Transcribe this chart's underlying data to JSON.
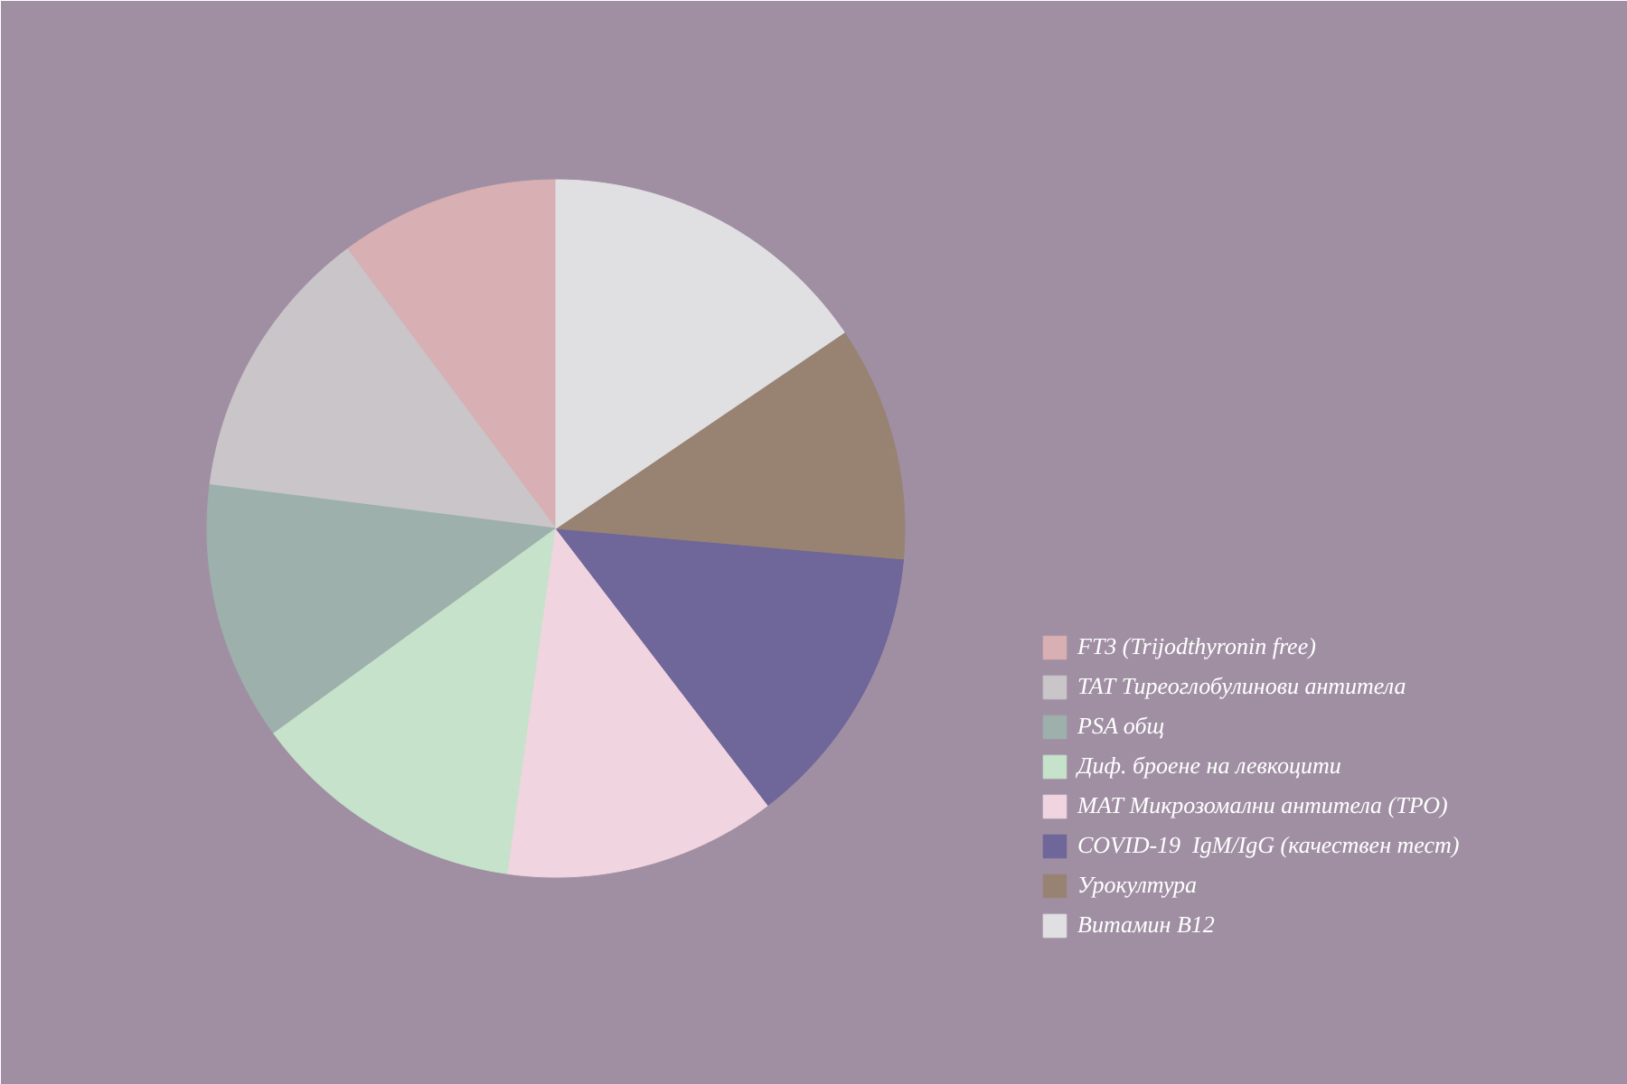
{
  "chart_data": {
    "type": "pie",
    "categories": [
      "FT3 (Trijodthyronin free)",
      "ТАТ Тиреоглобулинови антитела",
      "PSA общ",
      "Диф. броене на левкоцити",
      "МАТ Микрозомални антитела (ТРО)",
      "COVID-19  IgM/IgG (качествен тест)",
      "Урокултура",
      "Витамин B12"
    ],
    "values": [
      10.2,
      12.8,
      12.0,
      12.8,
      12.6,
      13.2,
      10.9,
      15.5
    ],
    "colors": [
      "#d8afb2",
      "#c9c5c8",
      "#9db0ab",
      "#c6e2ca",
      "#f0d5e0",
      "#6f6699",
      "#988373",
      "#e0e0e3"
    ],
    "legend": "right"
  }
}
